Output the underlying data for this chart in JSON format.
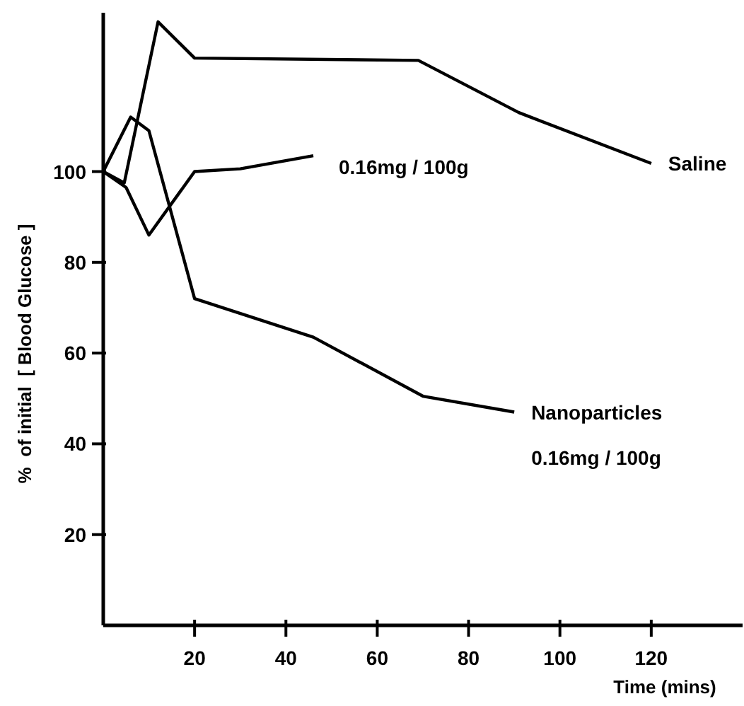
{
  "chart_data": {
    "type": "line",
    "xlabel": "Time (mins)",
    "ylabel": "%  of initial  [ Blood Glucose ]",
    "xlim": [
      0,
      140
    ],
    "xticks": [
      20,
      40,
      60,
      80,
      100,
      120
    ],
    "ylim": [
      0,
      135
    ],
    "yticks": [
      20,
      40,
      60,
      80,
      100
    ],
    "marker": "none",
    "line_style": "solid",
    "series": [
      {
        "color": "#000000",
        "x": [
          0,
          5,
          10,
          20,
          30,
          46
        ],
        "values": [
          100,
          96.5,
          86,
          100,
          100.6,
          103.5
        ]
      },
      {
        "name": "Nanoparticles",
        "color": "#000000",
        "x": [
          0,
          6,
          10,
          20,
          46,
          70,
          90
        ],
        "values": [
          100,
          112,
          109,
          72,
          63.5,
          50.5,
          47
        ]
      },
      {
        "name": "Saline",
        "color": "#000000",
        "x": [
          0,
          4.6,
          12,
          20,
          69,
          91,
          120
        ],
        "values": [
          100,
          97.5,
          133,
          125,
          124.5,
          113,
          101.8
        ]
      }
    ],
    "annotations": [
      "0.16mg / 100g",
      "0.16mg / 100g"
    ]
  }
}
